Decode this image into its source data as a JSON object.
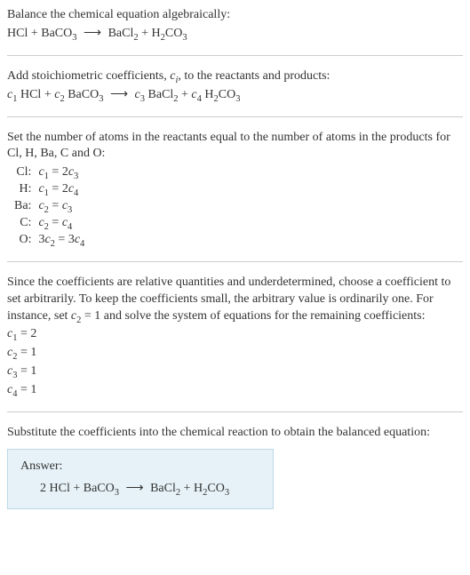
{
  "colors": {
    "text": "#333333",
    "rule": "#cccccc",
    "answer_bg": "#e6f2f8",
    "answer_border": "#bcd9e8"
  },
  "typography": {
    "base_font_size": 14,
    "sub_scale": 0.75,
    "italic_vars": true
  },
  "section1": {
    "instruction": "Balance the chemical equation algebraically:",
    "lhs1": "HCl",
    "plus": " + ",
    "lhs2_base": "BaCO",
    "lhs2_sub": "3",
    "arrow": "⟶",
    "rhs1_base": "BaCl",
    "rhs1_sub": "2",
    "rhs2_a": "H",
    "rhs2_a_sub": "2",
    "rhs2_b": "CO",
    "rhs2_b_sub": "3"
  },
  "section2": {
    "line1_a": "Add stoichiometric coefficients, ",
    "line1_var": "c",
    "line1_var_sub": "i",
    "line1_b": ", to the reactants and products:",
    "c1": "c",
    "c1s": "1",
    "sp": " ",
    "hcl": "HCl",
    "c2": "c",
    "c2s": "2",
    "baco": "BaCO",
    "baco_s": "3",
    "c3": "c",
    "c3s": "3",
    "bacl": "BaCl",
    "bacl_s": "2",
    "c4": "c",
    "c4s": "4",
    "h2": "H",
    "h2s": "2",
    "co": "CO",
    "cos": "3",
    "arrow": "⟶",
    "plus": " + "
  },
  "section3": {
    "intro": "Set the number of atoms in the reactants equal to the number of atoms in the products for Cl, H, Ba, C and O:",
    "rows": [
      {
        "atom": "Cl:",
        "lhs_c": "c",
        "lhs_cs": "1",
        "eq": " = 2",
        "rhs_c": "c",
        "rhs_cs": "3",
        "prefix": ""
      },
      {
        "atom": "H:",
        "lhs_c": "c",
        "lhs_cs": "1",
        "eq": " = 2",
        "rhs_c": "c",
        "rhs_cs": "4",
        "prefix": ""
      },
      {
        "atom": "Ba:",
        "lhs_c": "c",
        "lhs_cs": "2",
        "eq": " = ",
        "rhs_c": "c",
        "rhs_cs": "3",
        "prefix": ""
      },
      {
        "atom": "C:",
        "lhs_c": "c",
        "lhs_cs": "2",
        "eq": " = ",
        "rhs_c": "c",
        "rhs_cs": "4",
        "prefix": ""
      },
      {
        "atom": "O:",
        "lhs_c": "c",
        "lhs_cs": "2",
        "eq": " = 3",
        "rhs_c": "c",
        "rhs_cs": "4",
        "prefix": "3"
      }
    ]
  },
  "section4": {
    "text_a": "Since the coefficients are relative quantities and underdetermined, choose a coefficient to set arbitrarily. To keep the coefficients small, the arbitrary value is ordinarily one. For instance, set ",
    "var_c": "c",
    "var_c_sub": "2",
    "text_b": " = 1 and solve the system of equations for the remaining coefficients:",
    "results": [
      {
        "c": "c",
        "cs": "1",
        "eq": " = 2"
      },
      {
        "c": "c",
        "cs": "2",
        "eq": " = 1"
      },
      {
        "c": "c",
        "cs": "3",
        "eq": " = 1"
      },
      {
        "c": "c",
        "cs": "4",
        "eq": " = 1"
      }
    ]
  },
  "section5": {
    "text": "Substitute the coefficients into the chemical reaction to obtain the balanced equation:"
  },
  "answer": {
    "label": "Answer:",
    "coef1": "2 ",
    "hcl": "HCl",
    "plus": " + ",
    "baco": "BaCO",
    "baco_s": "3",
    "arrow": "⟶",
    "bacl": "BaCl",
    "bacl_s": "2",
    "h2": "H",
    "h2s": "2",
    "co": "CO",
    "cos": "3"
  }
}
